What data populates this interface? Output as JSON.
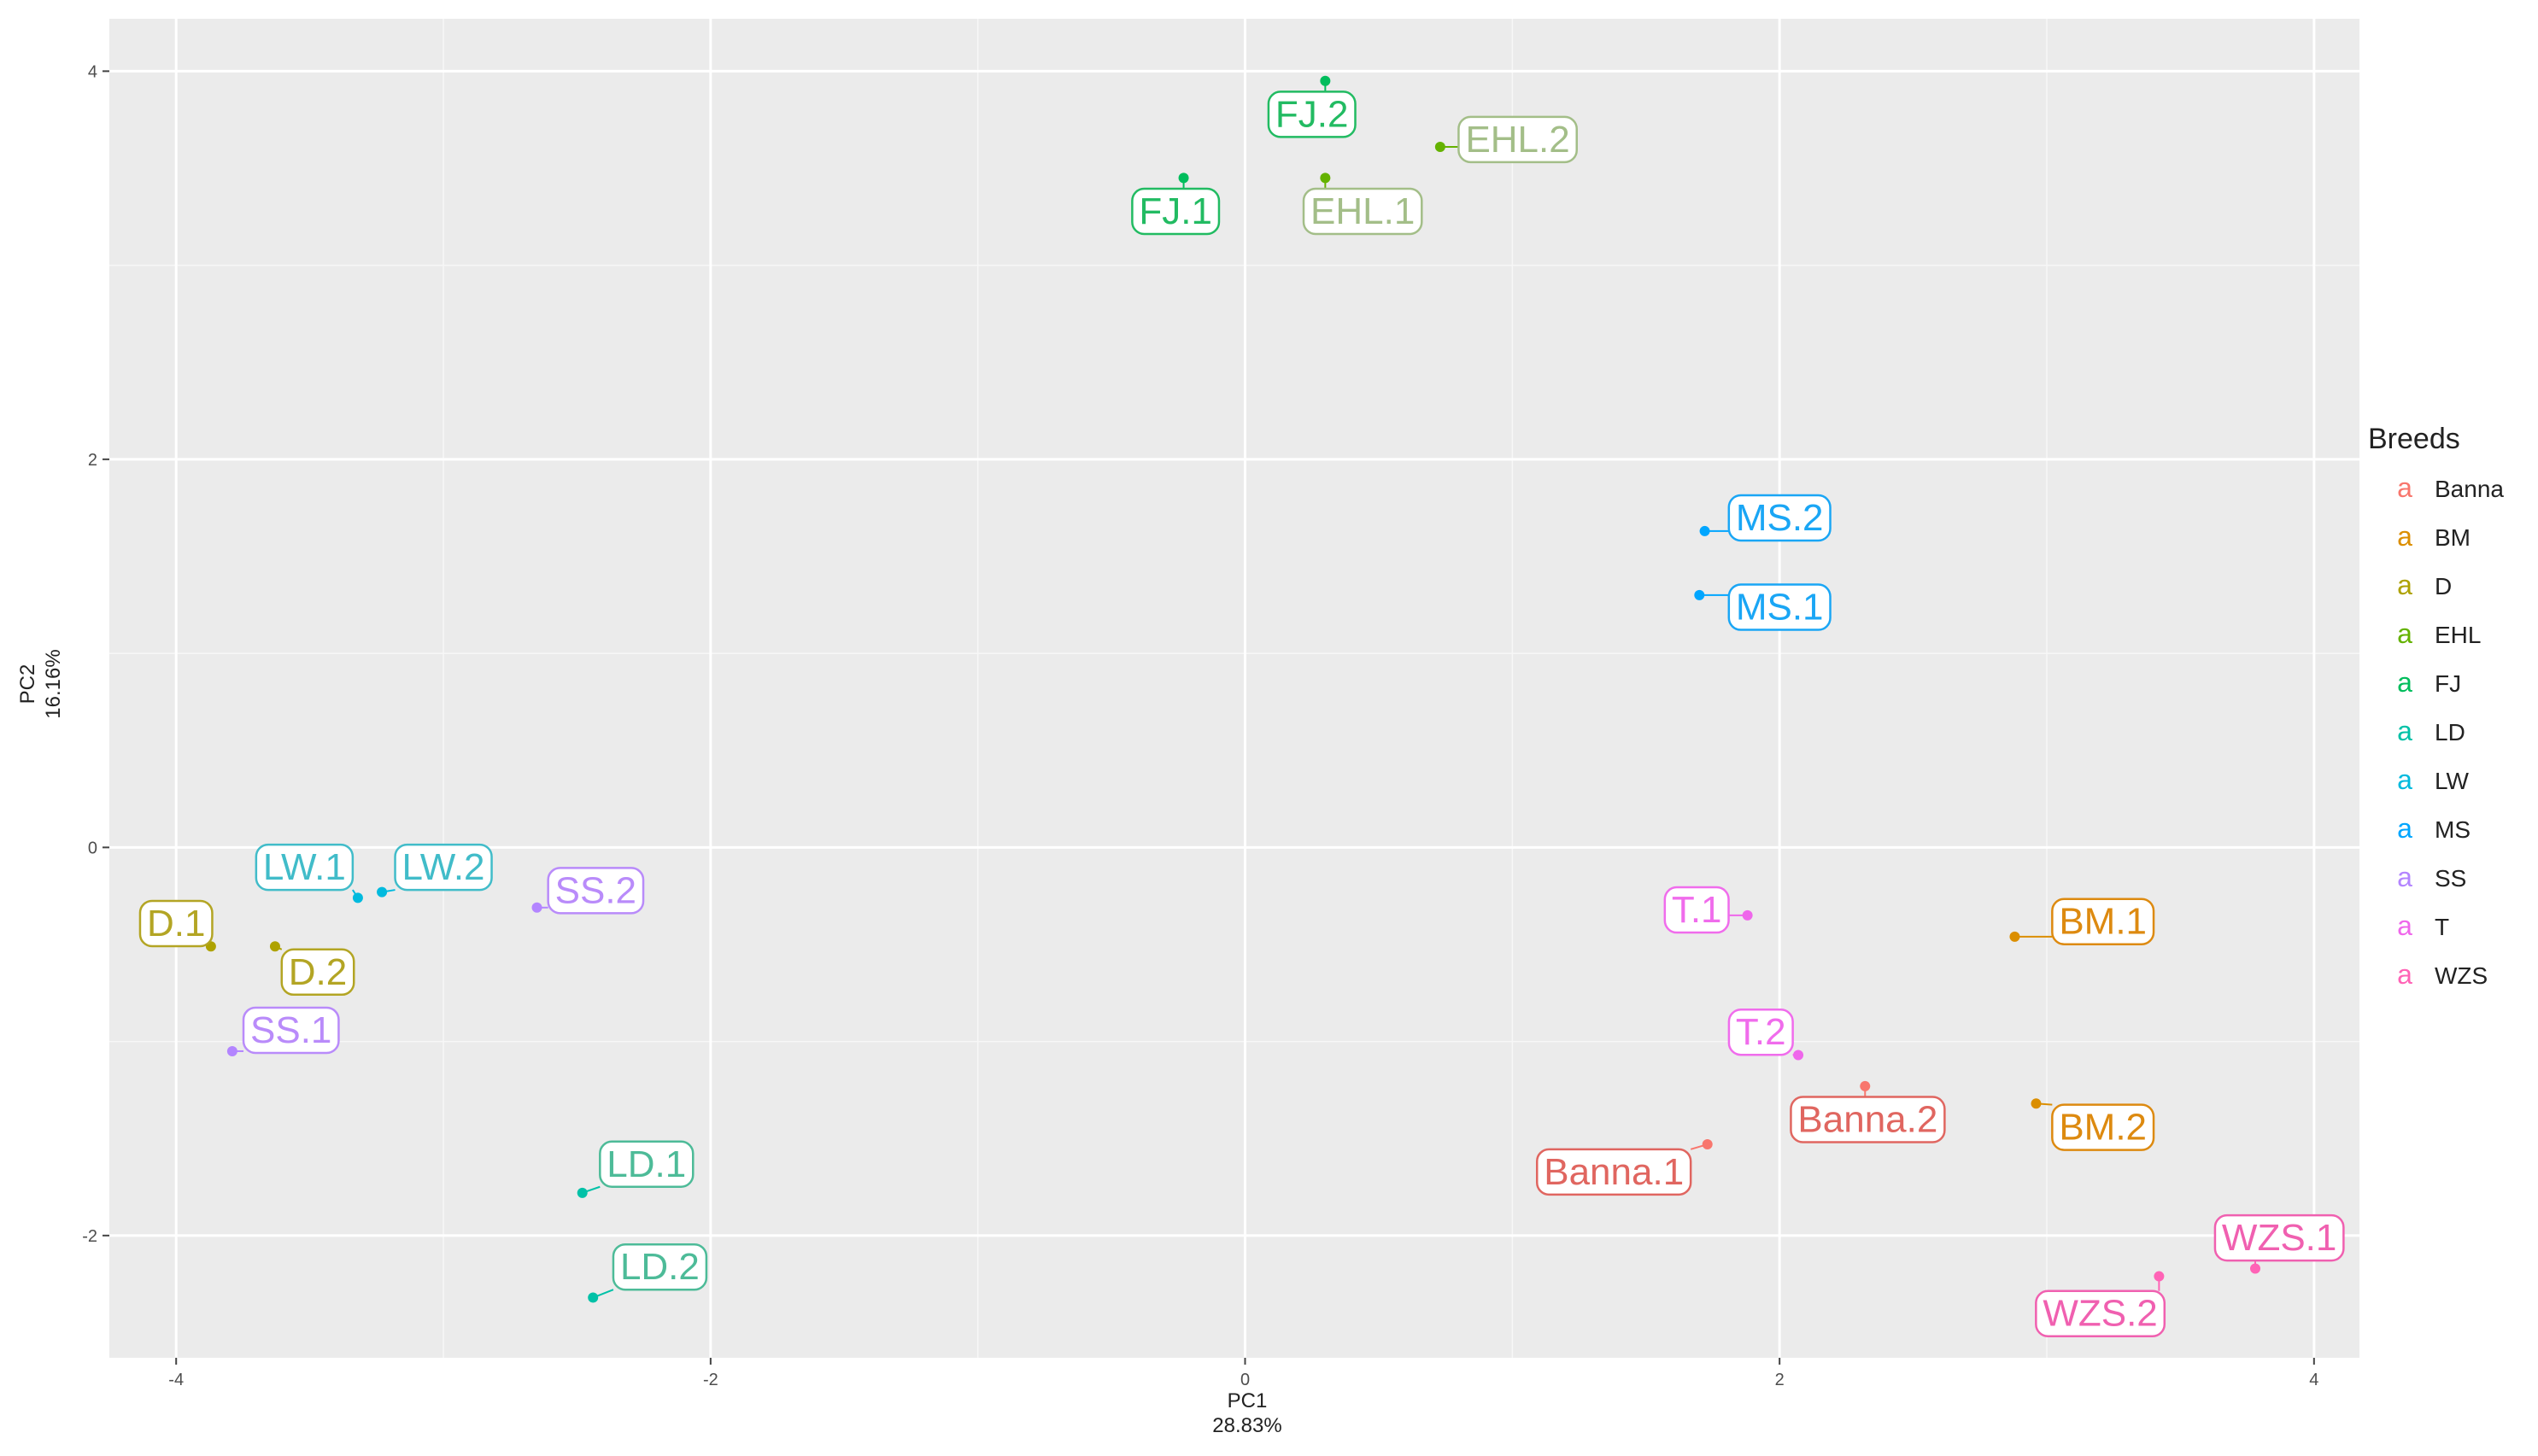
{
  "chart_data": {
    "type": "scatter",
    "title": "",
    "xlabel": "PC1",
    "xlabel_sub": "28.83%",
    "ylabel": "PC2",
    "ylabel_sub": "16.16%",
    "xlim": [
      -4.25,
      4.17
    ],
    "ylim": [
      -2.63,
      4.27
    ],
    "x_ticks": [
      -4,
      -2,
      0,
      2,
      4
    ],
    "y_ticks": [
      -2,
      0,
      2,
      4
    ],
    "x_tick_labels": [
      "-4",
      "-2",
      "0",
      "2",
      "4"
    ],
    "y_tick_labels": [
      "-2",
      "0",
      "2",
      "4"
    ],
    "grid": true,
    "legend_title": "Breeds",
    "legend_position": "right",
    "legend_key_glyph": "a",
    "categories": [
      "Banna",
      "BM",
      "D",
      "EHL",
      "FJ",
      "LD",
      "LW",
      "MS",
      "SS",
      "T",
      "WZS"
    ],
    "colors": {
      "Banna": "#F8766D",
      "BM": "#DB8E00",
      "D": "#AEA200",
      "EHL": "#64B200",
      "FJ": "#00BD5C",
      "LD": "#00C1A7",
      "LW": "#00BADE",
      "MS": "#00A6FF",
      "SS": "#B385FF",
      "T": "#EF67EB",
      "WZS": "#FF63B6"
    },
    "label_colors": {
      "Banna": "#E06660",
      "BM": "#DD8A10",
      "D": "#B3A524",
      "EHL": "#A3BE88",
      "FJ": "#22BB62",
      "LD": "#4DBB98",
      "LW": "#41BCC9",
      "MS": "#1AA6F5",
      "SS": "#B98BFA",
      "T": "#F06CEC",
      "WZS": "#F060B0"
    },
    "points": [
      {
        "label": "Banna.1",
        "group": "Banna",
        "x": 1.73,
        "y": -1.53,
        "lx": 1.38,
        "ly": -1.67
      },
      {
        "label": "Banna.2",
        "group": "Banna",
        "x": 2.32,
        "y": -1.23,
        "lx": 2.33,
        "ly": -1.4
      },
      {
        "label": "BM.1",
        "group": "BM",
        "x": 2.88,
        "y": -0.46,
        "lx": 3.21,
        "ly": -0.38
      },
      {
        "label": "BM.2",
        "group": "BM",
        "x": 2.96,
        "y": -1.32,
        "lx": 3.21,
        "ly": -1.44
      },
      {
        "label": "D.1",
        "group": "D",
        "x": -3.87,
        "y": -0.51,
        "lx": -4.0,
        "ly": -0.39
      },
      {
        "label": "D.2",
        "group": "D",
        "x": -3.63,
        "y": -0.51,
        "lx": -3.47,
        "ly": -0.64
      },
      {
        "label": "EHL.1",
        "group": "EHL",
        "x": 0.3,
        "y": 3.45,
        "lx": 0.44,
        "ly": 3.28
      },
      {
        "label": "EHL.2",
        "group": "EHL",
        "x": 0.73,
        "y": 3.61,
        "lx": 1.02,
        "ly": 3.65
      },
      {
        "label": "FJ.1",
        "group": "FJ",
        "x": -0.23,
        "y": 3.45,
        "lx": -0.26,
        "ly": 3.28
      },
      {
        "label": "FJ.2",
        "group": "FJ",
        "x": 0.3,
        "y": 3.95,
        "lx": 0.25,
        "ly": 3.78
      },
      {
        "label": "LD.1",
        "group": "LD",
        "x": -2.48,
        "y": -1.78,
        "lx": -2.24,
        "ly": -1.63
      },
      {
        "label": "LD.2",
        "group": "LD",
        "x": -2.44,
        "y": -2.32,
        "lx": -2.19,
        "ly": -2.16
      },
      {
        "label": "LW.1",
        "group": "LW",
        "x": -3.32,
        "y": -0.26,
        "lx": -3.52,
        "ly": -0.1
      },
      {
        "label": "LW.2",
        "group": "LW",
        "x": -3.23,
        "y": -0.23,
        "lx": -3.0,
        "ly": -0.1
      },
      {
        "label": "MS.1",
        "group": "MS",
        "x": 1.7,
        "y": 1.3,
        "lx": 2.0,
        "ly": 1.24
      },
      {
        "label": "MS.2",
        "group": "MS",
        "x": 1.72,
        "y": 1.63,
        "lx": 2.0,
        "ly": 1.7
      },
      {
        "label": "SS.1",
        "group": "SS",
        "x": -3.79,
        "y": -1.05,
        "lx": -3.57,
        "ly": -0.94
      },
      {
        "label": "SS.2",
        "group": "SS",
        "x": -2.65,
        "y": -0.31,
        "lx": -2.43,
        "ly": -0.22
      },
      {
        "label": "T.1",
        "group": "T",
        "x": 1.88,
        "y": -0.35,
        "lx": 1.69,
        "ly": -0.32
      },
      {
        "label": "T.2",
        "group": "T",
        "x": 2.07,
        "y": -1.07,
        "lx": 1.93,
        "ly": -0.95
      },
      {
        "label": "WZS.1",
        "group": "WZS",
        "x": 3.78,
        "y": -2.17,
        "lx": 3.87,
        "ly": -2.01
      },
      {
        "label": "WZS.2",
        "group": "WZS",
        "x": 3.42,
        "y": -2.21,
        "lx": 3.2,
        "ly": -2.4
      }
    ]
  }
}
